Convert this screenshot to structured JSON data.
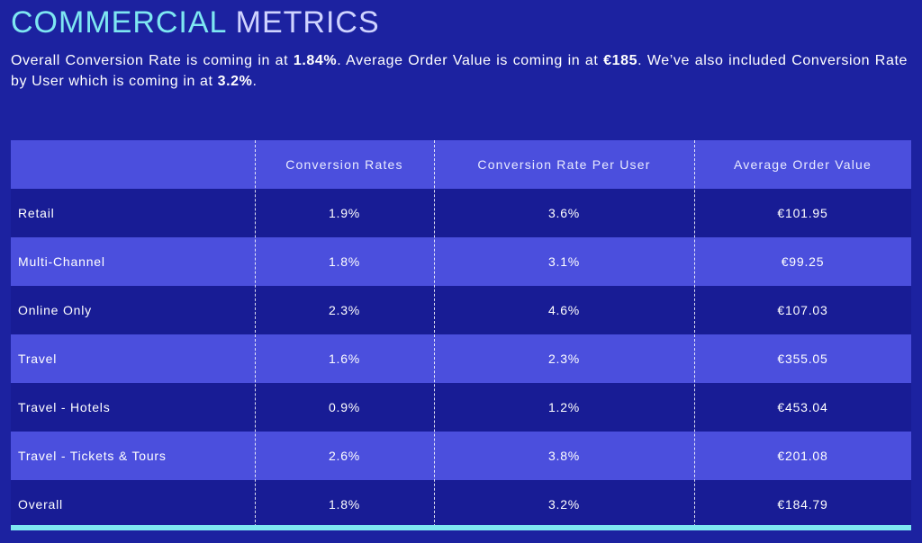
{
  "title": {
    "part1": "COMMERCIAL",
    "part2": "METRICS"
  },
  "intro": {
    "s1": "Overall Conversion Rate is coming in at ",
    "b1": "1.84%",
    "s2": ". Average Order Value is coming in at ",
    "b2": "€185",
    "s3": ". We’ve also included Conversion Rate by User which is coming in at ",
    "b3": "3.2%",
    "s4": "."
  },
  "table": {
    "headers": [
      "",
      "Conversion Rates",
      "Conversion Rate Per User",
      "Average Order Value"
    ],
    "rows": [
      [
        "Retail",
        "1.9%",
        "3.6%",
        "€101.95"
      ],
      [
        "Multi-Channel",
        "1.8%",
        "3.1%",
        "€99.25"
      ],
      [
        "Online Only",
        "2.3%",
        "4.6%",
        "€107.03"
      ],
      [
        "Travel",
        "1.6%",
        "2.3%",
        "€355.05"
      ],
      [
        "Travel - Hotels",
        "0.9%",
        "1.2%",
        "€453.04"
      ],
      [
        "Travel - Tickets & Tours",
        "2.6%",
        "3.8%",
        "€201.08"
      ],
      [
        "Overall",
        "1.8%",
        "3.2%",
        "€184.79"
      ]
    ]
  },
  "colors": {
    "background": "#1c22a0",
    "accent": "#7ee7f2",
    "row_light": "#4b4fdd",
    "row_dark": "#181c95"
  }
}
